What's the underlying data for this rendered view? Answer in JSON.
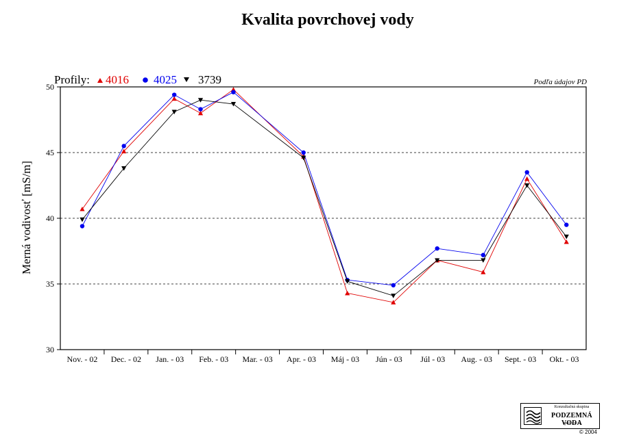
{
  "chart_data": {
    "type": "line",
    "title": "Kvalita povrchovej vody",
    "ylabel": "Merná vodivosť [mS/m]",
    "xlabel": "",
    "ylim": [
      30,
      50
    ],
    "yticks": [
      30,
      35,
      40,
      45,
      50
    ],
    "grid": "horizontal dashed at 35, 40, 45",
    "categories": [
      "Nov. - 02",
      "Dec. - 02",
      "Jan. - 03",
      "Feb. - 03",
      "Mar. - 03",
      "Apr. - 03",
      "Máj - 03",
      "Jún - 03",
      "Júl - 03",
      "Aug. - 03",
      "Sept. - 03",
      "Okt. - 03"
    ],
    "legend_title": "Profily:",
    "legend_placement": "top-left, above plot",
    "source_note": "Podľa údajov PD",
    "series": [
      {
        "name": "4016",
        "color": "#e00000",
        "marker": "triangle-up",
        "points": [
          {
            "x": 0.0,
            "y": 40.7
          },
          {
            "x": 0.95,
            "y": 45.1
          },
          {
            "x": 2.1,
            "y": 49.1
          },
          {
            "x": 2.7,
            "y": 48.0
          },
          {
            "x": 3.45,
            "y": 49.8
          },
          {
            "x": 5.05,
            "y": 44.7
          },
          {
            "x": 6.05,
            "y": 34.3
          },
          {
            "x": 7.1,
            "y": 33.6
          },
          {
            "x": 8.1,
            "y": 36.8
          },
          {
            "x": 9.15,
            "y": 35.9
          },
          {
            "x": 10.15,
            "y": 43.0
          },
          {
            "x": 11.05,
            "y": 38.2
          }
        ]
      },
      {
        "name": "4025",
        "color": "#0000ee",
        "marker": "circle",
        "points": [
          {
            "x": 0.0,
            "y": 39.4
          },
          {
            "x": 0.95,
            "y": 45.5
          },
          {
            "x": 2.1,
            "y": 49.4
          },
          {
            "x": 2.7,
            "y": 48.3
          },
          {
            "x": 3.45,
            "y": 49.6
          },
          {
            "x": 5.05,
            "y": 45.0
          },
          {
            "x": 6.05,
            "y": 35.3
          },
          {
            "x": 7.1,
            "y": 34.9
          },
          {
            "x": 8.1,
            "y": 37.7
          },
          {
            "x": 9.15,
            "y": 37.2
          },
          {
            "x": 10.15,
            "y": 43.5
          },
          {
            "x": 11.05,
            "y": 39.5
          }
        ]
      },
      {
        "name": "3739",
        "color": "#000000",
        "marker": "triangle-down",
        "points": [
          {
            "x": 0.0,
            "y": 39.9
          },
          {
            "x": 0.95,
            "y": 43.8
          },
          {
            "x": 2.1,
            "y": 48.1
          },
          {
            "x": 2.7,
            "y": 49.0
          },
          {
            "x": 3.45,
            "y": 48.7
          },
          {
            "x": 5.05,
            "y": 44.6
          },
          {
            "x": 6.05,
            "y": 35.2
          },
          {
            "x": 7.1,
            "y": 34.1
          },
          {
            "x": 8.1,
            "y": 36.8
          },
          {
            "x": 9.15,
            "y": 36.8
          },
          {
            "x": 10.15,
            "y": 42.5
          },
          {
            "x": 11.05,
            "y": 38.6
          }
        ]
      }
    ]
  },
  "logo": {
    "line1": "Konzultačná skupina",
    "line2": "PODZEMNÁ VODA",
    "line3": "spol. s r. o."
  },
  "copyright": "© 2004"
}
